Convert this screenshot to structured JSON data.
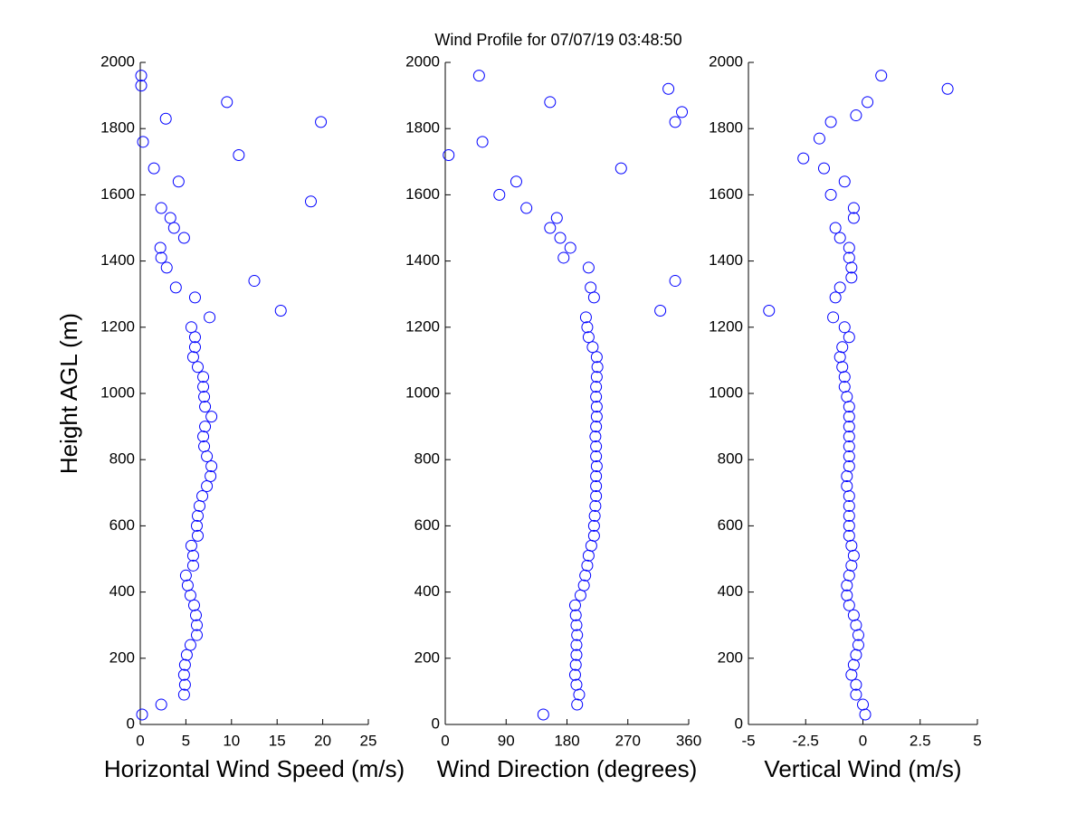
{
  "chart_data": [
    {
      "type": "scatter",
      "title": "Wind Profile for  07/07/19 03:48:50",
      "xlabel": "Horizontal Wind Speed (m/s)",
      "ylabel": "Height AGL (m)",
      "color": "#0000ff",
      "xlim": [
        0,
        25
      ],
      "xticks": [
        0,
        5,
        10,
        15,
        20,
        25
      ],
      "ylim": [
        0,
        2000
      ],
      "yticks": [
        0,
        200,
        400,
        600,
        800,
        1000,
        1200,
        1400,
        1600,
        1800,
        2000
      ],
      "x": [
        0.2,
        2.3,
        4.8,
        4.9,
        4.8,
        4.9,
        5.1,
        5.5,
        6.2,
        6.2,
        6.1,
        5.9,
        5.5,
        5.2,
        5.0,
        5.8,
        5.8,
        5.6,
        6.3,
        6.2,
        6.3,
        6.5,
        6.8,
        7.3,
        7.7,
        7.8,
        7.3,
        7.0,
        6.9,
        7.1,
        7.8,
        7.1,
        7.0,
        6.9,
        6.9,
        6.3,
        5.8,
        6.0,
        6.0,
        5.6,
        7.6,
        15.4,
        6.0,
        3.9,
        12.5,
        2.9,
        2.3,
        2.2,
        4.8,
        3.7,
        3.3,
        2.3,
        18.7,
        4.2,
        1.5,
        10.8,
        0.3,
        19.8,
        2.8,
        9.5,
        0.1,
        0.1
      ],
      "y": [
        30,
        60,
        90,
        120,
        150,
        180,
        210,
        240,
        270,
        300,
        330,
        360,
        390,
        420,
        450,
        480,
        510,
        540,
        570,
        600,
        630,
        660,
        690,
        720,
        750,
        780,
        810,
        840,
        870,
        900,
        930,
        960,
        990,
        1020,
        1050,
        1080,
        1110,
        1140,
        1170,
        1200,
        1230,
        1250,
        1290,
        1320,
        1340,
        1380,
        1410,
        1440,
        1470,
        1500,
        1530,
        1560,
        1580,
        1640,
        1680,
        1720,
        1760,
        1820,
        1830,
        1880,
        1930,
        1960
      ]
    },
    {
      "type": "scatter",
      "xlabel": "Wind Direction (degrees)",
      "color": "#0000ff",
      "xlim": [
        0,
        360
      ],
      "xticks": [
        0,
        90,
        180,
        270,
        360
      ],
      "ylim": [
        0,
        2000
      ],
      "yticks": [
        0,
        200,
        400,
        600,
        800,
        1000,
        1200,
        1400,
        1600,
        1800,
        2000
      ],
      "x": [
        145,
        195,
        198,
        194,
        192,
        193,
        194,
        194,
        195,
        194,
        193,
        192,
        200,
        205,
        207,
        210,
        212,
        216,
        220,
        220,
        221,
        222,
        223,
        223,
        223,
        224,
        223,
        223,
        222,
        223,
        224,
        224,
        223,
        223,
        224,
        225,
        224,
        218,
        212,
        210,
        208,
        318,
        220,
        215,
        340,
        212,
        175,
        185,
        170,
        155,
        165,
        120,
        80,
        105,
        260,
        5,
        55,
        340,
        350,
        155,
        330,
        50
      ],
      "y": [
        30,
        60,
        90,
        120,
        150,
        180,
        210,
        240,
        270,
        300,
        330,
        360,
        390,
        420,
        450,
        480,
        510,
        540,
        570,
        600,
        630,
        660,
        690,
        720,
        750,
        780,
        810,
        840,
        870,
        900,
        930,
        960,
        990,
        1020,
        1050,
        1080,
        1110,
        1140,
        1170,
        1200,
        1230,
        1250,
        1290,
        1320,
        1340,
        1380,
        1410,
        1440,
        1470,
        1500,
        1530,
        1560,
        1600,
        1640,
        1680,
        1720,
        1760,
        1820,
        1850,
        1880,
        1920,
        1960
      ]
    },
    {
      "type": "scatter",
      "xlabel": "Vertical Wind (m/s)",
      "color": "#0000ff",
      "xlim": [
        -5,
        5
      ],
      "xticks": [
        -5,
        -2.5,
        0,
        2.5,
        5
      ],
      "ylim": [
        0,
        2000
      ],
      "yticks": [
        0,
        200,
        400,
        600,
        800,
        1000,
        1200,
        1400,
        1600,
        1800,
        2000
      ],
      "x": [
        0.1,
        0.0,
        -0.3,
        -0.3,
        -0.5,
        -0.4,
        -0.3,
        -0.2,
        -0.2,
        -0.3,
        -0.4,
        -0.6,
        -0.7,
        -0.7,
        -0.6,
        -0.5,
        -0.4,
        -0.5,
        -0.6,
        -0.6,
        -0.6,
        -0.6,
        -0.6,
        -0.7,
        -0.7,
        -0.6,
        -0.6,
        -0.6,
        -0.6,
        -0.6,
        -0.6,
        -0.6,
        -0.7,
        -0.8,
        -0.8,
        -0.9,
        -1.0,
        -0.9,
        -0.6,
        -0.8,
        -1.3,
        -4.1,
        -1.2,
        -1.0,
        -0.5,
        -0.5,
        -0.6,
        -0.6,
        -1.0,
        -1.2,
        -0.4,
        -0.4,
        -1.4,
        -0.8,
        -1.7,
        -2.6,
        -1.9,
        -1.4,
        -0.3,
        0.2,
        3.7,
        0.8
      ],
      "y": [
        30,
        60,
        90,
        120,
        150,
        180,
        210,
        240,
        270,
        300,
        330,
        360,
        390,
        420,
        450,
        480,
        510,
        540,
        570,
        600,
        630,
        660,
        690,
        720,
        750,
        780,
        810,
        840,
        870,
        900,
        930,
        960,
        990,
        1020,
        1050,
        1080,
        1110,
        1140,
        1170,
        1200,
        1230,
        1250,
        1290,
        1320,
        1350,
        1380,
        1410,
        1440,
        1470,
        1500,
        1530,
        1560,
        1600,
        1640,
        1680,
        1710,
        1770,
        1820,
        1840,
        1880,
        1920,
        1960
      ]
    }
  ]
}
